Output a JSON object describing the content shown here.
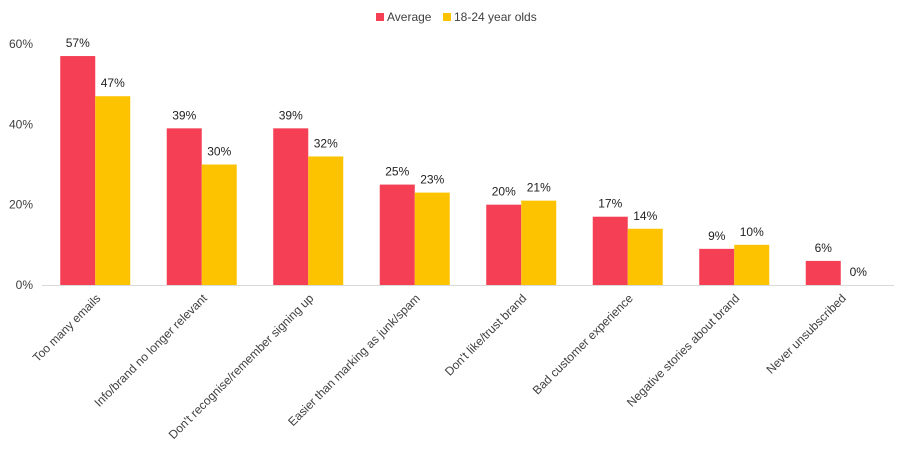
{
  "chart_data": {
    "type": "bar",
    "categories": [
      "Too many emails",
      "Info/brand no longer relevant",
      "Don't recognise/remember signing up",
      "Easier than marking as junk/spam",
      "Don't like/trust brand",
      "Bad customer experience",
      "Negative stories about brand",
      "Never unsubscribed"
    ],
    "series": [
      {
        "name": "Average",
        "color": "#f43f54",
        "values": [
          57,
          39,
          39,
          25,
          20,
          17,
          9,
          6
        ],
        "labels": [
          "57%",
          "39%",
          "39%",
          "25%",
          "20%",
          "17%",
          "9%",
          "6%"
        ]
      },
      {
        "name": "18-24 year olds",
        "color": "#fdc300",
        "values": [
          47,
          30,
          32,
          23,
          21,
          14,
          10,
          0
        ],
        "labels": [
          "47%",
          "30%",
          "32%",
          "23%",
          "21%",
          "14%",
          "10%",
          "0%"
        ]
      }
    ],
    "ylim": [
      0,
      60
    ],
    "yticks": [
      0,
      20,
      40,
      60
    ],
    "ytick_labels": [
      "0%",
      "20%",
      "40%",
      "60%"
    ],
    "legend_position": "top-center",
    "grid": false,
    "axis_color": "#d9d9d9"
  }
}
